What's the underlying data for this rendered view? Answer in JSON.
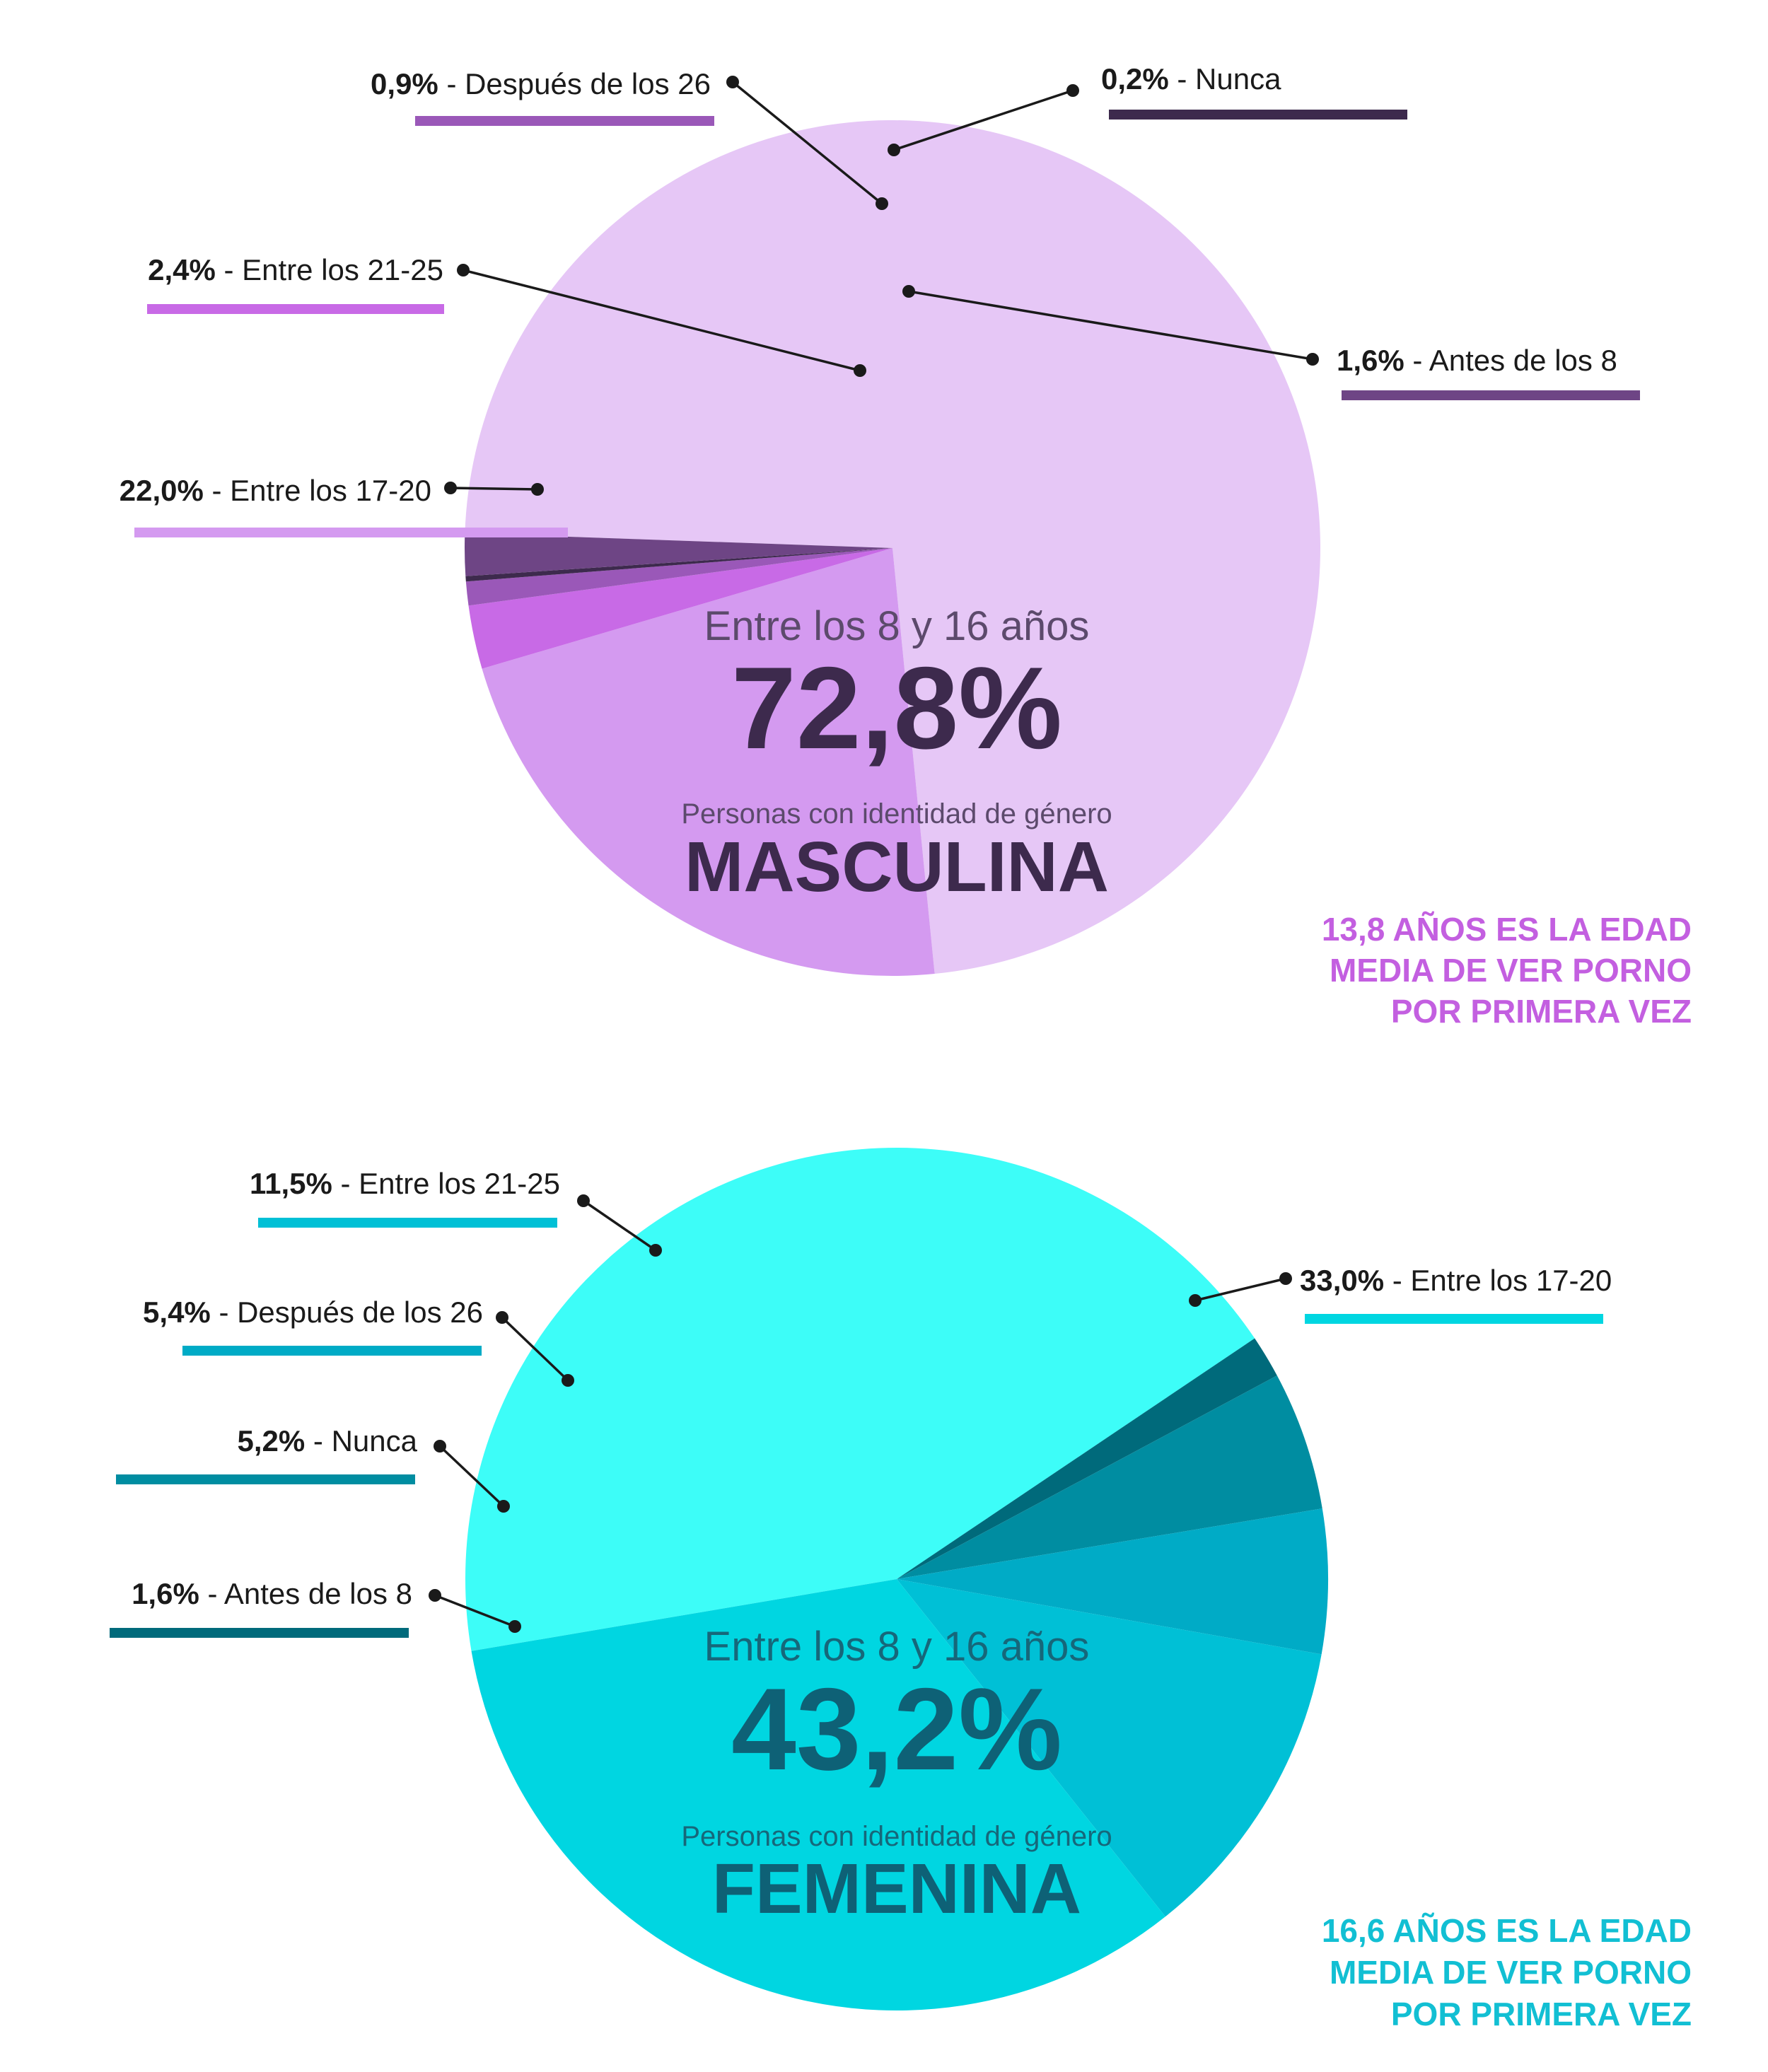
{
  "chart_data": [
    {
      "type": "pie",
      "title": "MASCULINA",
      "subtitle": "Personas con identidad de género",
      "highlight": {
        "label": "Entre los 8 y 16 años",
        "value": 72.8,
        "value_text": "72,8%"
      },
      "note": [
        "13,8 AÑOS ES LA EDAD",
        "MEDIA DE VER PORNO",
        "POR PRIMERA VEZ"
      ],
      "colors": {
        "title": "#3d2a4d",
        "note": "#c35fe0",
        "text": "#5c4a6c"
      },
      "slices": [
        {
          "label": "Entre los 8 y 16 años",
          "value": 72.8,
          "value_text": "72,8%",
          "color": "#e6c7f6",
          "callout": false
        },
        {
          "label": "Entre los 17-20",
          "value": 22.0,
          "value_text": "22,0%",
          "color": "#d49af0",
          "callout": true
        },
        {
          "label": "Entre los 21-25",
          "value": 2.4,
          "value_text": "2,4%",
          "color": "#c86ae6",
          "callout": true
        },
        {
          "label": "Después de los 26",
          "value": 0.9,
          "value_text": "0,9%",
          "color": "#9a58b8",
          "callout": true
        },
        {
          "label": "Nunca",
          "value": 0.2,
          "value_text": "0,2%",
          "color": "#3d2a4d",
          "callout": true
        },
        {
          "label": "Antes de los 8",
          "value": 1.6,
          "value_text": "1,6%",
          "color": "#6e4585",
          "callout": true
        }
      ]
    },
    {
      "type": "pie",
      "title": "FEMENINA",
      "subtitle": "Personas con identidad de género",
      "highlight": {
        "label": "Entre los 8 y 16 años",
        "value": 43.2,
        "value_text": "43,2%"
      },
      "note": [
        "16,6 AÑOS ES LA EDAD",
        "MEDIA DE VER PORNO",
        "POR PRIMERA VEZ"
      ],
      "colors": {
        "title": "#0e6176",
        "note": "#12bfd3",
        "text": "#16677a"
      },
      "slices": [
        {
          "label": "Entre los 8 y 16 años",
          "value": 43.2,
          "value_text": "43,2%",
          "color": "#3dfdf8",
          "callout": false
        },
        {
          "label": "Antes de los 8",
          "value": 1.6,
          "value_text": "1,6%",
          "color": "#006a7b",
          "callout": true
        },
        {
          "label": "Nunca",
          "value": 5.2,
          "value_text": "5,2%",
          "color": "#008da1",
          "callout": true
        },
        {
          "label": "Después de los 26",
          "value": 5.4,
          "value_text": "5,4%",
          "color": "#00abc6",
          "callout": true
        },
        {
          "label": "Entre los 21-25",
          "value": 11.5,
          "value_text": "11,5%",
          "color": "#00c0d6",
          "callout": true
        },
        {
          "label": "Entre los 17-20",
          "value": 33.0,
          "value_text": "33,0%",
          "color": "#00d6e1",
          "callout": true
        }
      ]
    }
  ]
}
